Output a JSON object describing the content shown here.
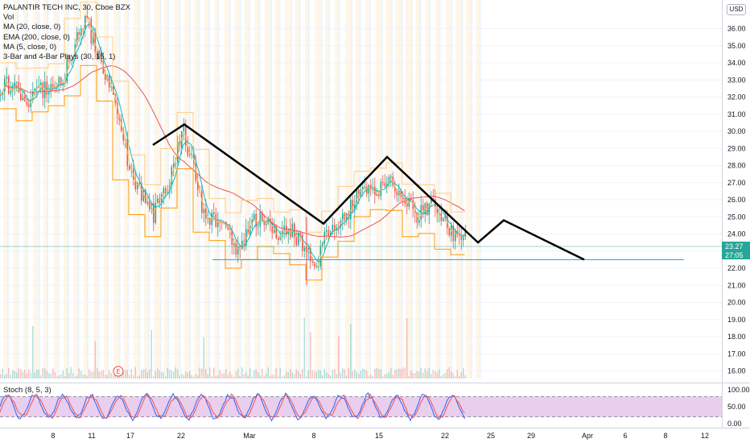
{
  "legend": {
    "title": "PALANTIR TECH INC, 30, Cboe BZX",
    "items": [
      "Vol",
      "MA (20, close, 0)",
      "EMA (200, close, 0)",
      "MA (5, close, 0)",
      "3-Bar and 4-Bar Plays (30, 15, 1)"
    ]
  },
  "currency": "USD",
  "price_tag": {
    "price": "23.27",
    "countdown": "27:05"
  },
  "stoch_label": "Stoch (8, 5, 3)",
  "colors": {
    "bull": "#26a69a",
    "bear": "#ef5350",
    "ma20": "#00bcd4",
    "ema200": "#ef5350",
    "ma5": "#ffb74d",
    "play": "#ff9800",
    "pattern": "#000000",
    "support": "#2196f3",
    "stoch_band": "#e1bee7",
    "stoch_k": "#2962ff",
    "stoch_d": "#ef5350"
  },
  "chart_data": {
    "type": "candlestick",
    "y_axis": {
      "ticks": [
        16.0,
        17.0,
        18.0,
        19.0,
        20.0,
        21.0,
        22.0,
        23.0,
        24.0,
        25.0,
        26.0,
        27.0,
        28.0,
        29.0,
        30.0,
        31.0,
        32.0,
        33.0,
        34.0,
        35.0,
        36.0
      ],
      "ylim": [
        15.6,
        37.15
      ]
    },
    "x_axis": {
      "ticks": [
        "8",
        "11",
        "17",
        "22",
        "Mar",
        "8",
        "15",
        "22",
        "25",
        "29",
        "Apr",
        "6",
        "8",
        "12"
      ]
    },
    "price_path": [
      [
        "8",
        32.0
      ],
      [
        "11",
        36.3
      ],
      [
        "14",
        33.0
      ],
      [
        "17",
        28.0
      ],
      [
        "19",
        24.9
      ],
      [
        "22",
        29.8
      ],
      [
        "24",
        25.5
      ],
      [
        "Mar",
        23.5
      ],
      [
        "4",
        24.9
      ],
      [
        "8",
        22.5
      ],
      [
        "10",
        25.0
      ],
      [
        "15",
        27.3
      ],
      [
        "17",
        26.0
      ],
      [
        "22",
        24.7
      ],
      [
        "23",
        23.27
      ]
    ],
    "intraday_low": 21.0,
    "stochastic": {
      "ticks": [
        0.0,
        50.0,
        100.0
      ],
      "upper_band": 80,
      "lower_band": 20
    },
    "annotations": {
      "pattern": [
        [
          "Feb 20",
          29.2
        ],
        [
          "Feb 22",
          30.4
        ],
        [
          "Mar 8",
          24.6
        ],
        [
          "Mar 15",
          28.5
        ],
        [
          "Mar 24",
          23.5
        ],
        [
          "Mar 26",
          24.8
        ],
        [
          "Mar 31",
          22.5
        ]
      ],
      "support_line": 22.5
    },
    "volume_event_marker": "E"
  }
}
